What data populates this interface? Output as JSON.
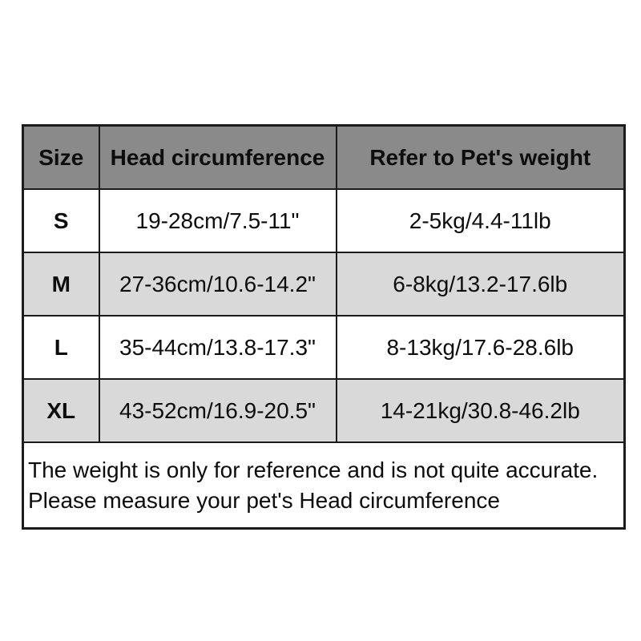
{
  "chart_data": {
    "type": "table",
    "title": "",
    "columns": [
      "Size",
      "Head circumference",
      "Refer to Pet's weight"
    ],
    "rows": [
      [
        "S",
        "19-28cm/7.5-11\"",
        "2-5kg/4.4-11lb"
      ],
      [
        "M",
        "27-36cm/10.6-14.2\"",
        "6-8kg/13.2-17.6lb"
      ],
      [
        "L",
        "35-44cm/13.8-17.3\"",
        "8-13kg/17.6-28.6lb"
      ],
      [
        "XL",
        "43-52cm/16.9-20.5\"",
        "14-21kg/30.8-46.2lb"
      ]
    ],
    "footnote_lines": [
      "The weight is only for reference and is not quite accurate.",
      "Please measure your pet's Head circumference"
    ],
    "layout_hints": {
      "header_bold": true,
      "alternating_row_shading": true,
      "footnote_spans_all_columns": true
    }
  },
  "colors": {
    "header_bg": "#8a8a8a",
    "row_bg": "#ffffff",
    "row_alt_bg": "#d9d9d9",
    "border": "#1b1b1b",
    "text": "#0d0d0d",
    "page_bg": "#ffffff"
  }
}
